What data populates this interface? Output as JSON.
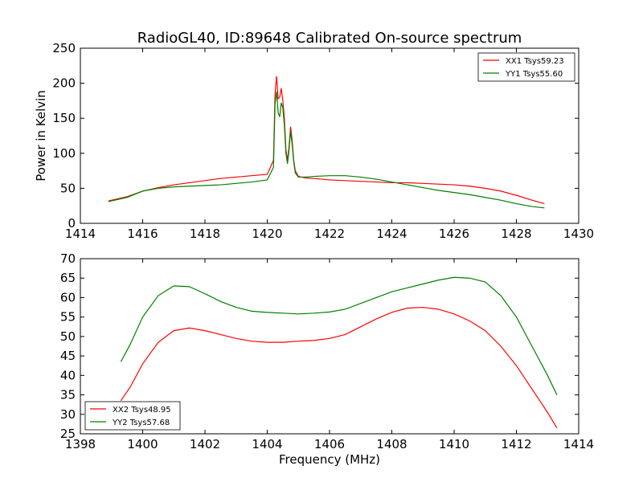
{
  "chart_data": [
    {
      "type": "line",
      "title": "RadioGL40, ID:89648 Calibrated On-source spectrum",
      "xlabel": "",
      "ylabel": "Power in Kelvin",
      "xlim": [
        1414,
        1430
      ],
      "ylim": [
        0,
        250
      ],
      "xticks": [
        "1414",
        "1416",
        "1418",
        "1420",
        "1422",
        "1424",
        "1426",
        "1428",
        "1430"
      ],
      "yticks": [
        "0",
        "50",
        "100",
        "150",
        "200",
        "250"
      ],
      "grid": false,
      "legend": "top-right",
      "series": [
        {
          "name": "XX1 Tsys59.23",
          "color": "#ff0000",
          "x": [
            1414.9,
            1415.5,
            1416.0,
            1416.5,
            1417.0,
            1417.5,
            1418.0,
            1418.5,
            1419.0,
            1419.5,
            1420.0,
            1420.2,
            1420.25,
            1420.3,
            1420.35,
            1420.4,
            1420.45,
            1420.5,
            1420.55,
            1420.6,
            1420.65,
            1420.7,
            1420.75,
            1420.8,
            1420.85,
            1420.9,
            1421.0,
            1421.2,
            1421.5,
            1422.0,
            1422.5,
            1423.0,
            1423.5,
            1424.0,
            1424.5,
            1425.0,
            1425.5,
            1426.0,
            1426.5,
            1427.0,
            1427.5,
            1428.0,
            1428.5,
            1428.9
          ],
          "values": [
            32,
            38,
            46,
            51,
            55,
            58,
            61,
            64,
            66,
            68,
            70,
            90,
            185,
            210,
            178,
            180,
            193,
            175,
            150,
            105,
            90,
            110,
            138,
            118,
            90,
            75,
            67,
            65,
            64,
            62,
            61,
            60,
            59,
            58,
            58,
            57,
            56,
            55,
            53,
            50,
            46,
            40,
            33,
            28
          ]
        },
        {
          "name": "YY1 Tsys55.60",
          "color": "#008000",
          "x": [
            1414.9,
            1415.5,
            1416.0,
            1416.5,
            1417.0,
            1417.5,
            1418.0,
            1418.5,
            1419.0,
            1419.5,
            1420.0,
            1420.2,
            1420.25,
            1420.3,
            1420.35,
            1420.4,
            1420.45,
            1420.5,
            1420.55,
            1420.6,
            1420.65,
            1420.7,
            1420.75,
            1420.8,
            1420.85,
            1420.9,
            1421.0,
            1421.2,
            1421.5,
            1422.0,
            1422.5,
            1423.0,
            1423.5,
            1424.0,
            1424.5,
            1425.0,
            1425.5,
            1426.0,
            1426.5,
            1427.0,
            1427.5,
            1428.0,
            1428.5,
            1428.9
          ],
          "values": [
            31,
            37,
            46,
            50,
            52,
            53,
            54,
            55,
            57,
            59,
            62,
            80,
            170,
            188,
            158,
            152,
            172,
            165,
            140,
            100,
            85,
            105,
            132,
            112,
            88,
            72,
            66,
            66,
            67,
            68,
            68,
            66,
            63,
            59,
            55,
            51,
            47,
            44,
            41,
            37,
            33,
            28,
            24,
            22
          ]
        }
      ]
    },
    {
      "type": "line",
      "title": "",
      "xlabel": "Frequency (MHz)",
      "ylabel": "",
      "xlim": [
        1398,
        1414
      ],
      "ylim": [
        25,
        70
      ],
      "xticks": [
        "1398",
        "1400",
        "1402",
        "1404",
        "1406",
        "1408",
        "1410",
        "1412",
        "1414"
      ],
      "yticks": [
        "25",
        "30",
        "35",
        "40",
        "45",
        "50",
        "55",
        "60",
        "65",
        "70"
      ],
      "grid": false,
      "legend": "bottom-left",
      "series": [
        {
          "name": "XX2 Tsys48.95",
          "color": "#ff0000",
          "x": [
            1399.3,
            1399.6,
            1400.0,
            1400.5,
            1401.0,
            1401.5,
            1402.0,
            1402.5,
            1403.0,
            1403.5,
            1404.0,
            1404.5,
            1405.0,
            1405.5,
            1406.0,
            1406.5,
            1407.0,
            1407.5,
            1408.0,
            1408.5,
            1409.0,
            1409.5,
            1410.0,
            1410.5,
            1411.0,
            1411.5,
            1412.0,
            1412.5,
            1413.0,
            1413.3
          ],
          "values": [
            33.5,
            37,
            43,
            48.5,
            51.5,
            52.2,
            51.5,
            50.5,
            49.5,
            48.8,
            48.5,
            48.5,
            48.8,
            49.0,
            49.5,
            50.5,
            52.5,
            54.5,
            56.2,
            57.3,
            57.5,
            57.0,
            55.8,
            54.0,
            51.5,
            47.5,
            42.5,
            36.5,
            30.5,
            26.5
          ]
        },
        {
          "name": "YY2 Tsys57.68",
          "color": "#008000",
          "x": [
            1399.3,
            1399.6,
            1400.0,
            1400.5,
            1401.0,
            1401.5,
            1402.0,
            1402.5,
            1403.0,
            1403.5,
            1404.0,
            1404.5,
            1405.0,
            1405.5,
            1406.0,
            1406.5,
            1407.0,
            1407.5,
            1408.0,
            1408.5,
            1409.0,
            1409.5,
            1410.0,
            1410.5,
            1411.0,
            1411.5,
            1412.0,
            1412.5,
            1413.0,
            1413.3
          ],
          "values": [
            43.5,
            48,
            55,
            60.5,
            63,
            62.8,
            61,
            59,
            57.5,
            56.5,
            56.2,
            56.0,
            55.8,
            56.0,
            56.3,
            57.0,
            58.5,
            60.0,
            61.5,
            62.5,
            63.5,
            64.5,
            65.2,
            65.0,
            64.0,
            60.5,
            55.0,
            47.5,
            40.0,
            35.0
          ]
        }
      ]
    }
  ]
}
